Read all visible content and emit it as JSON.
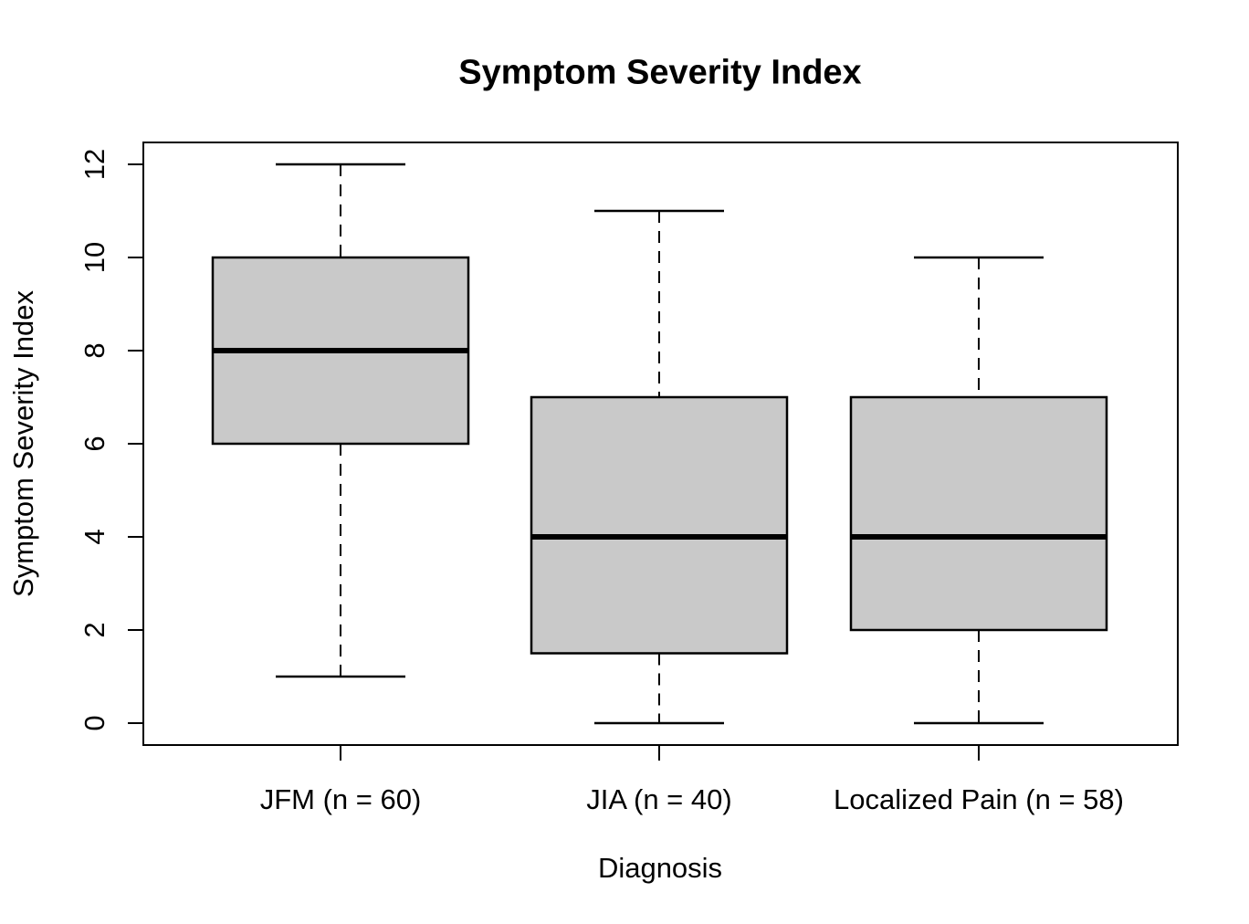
{
  "title": "Symptom Severity Index",
  "x_axis": {
    "label": "Diagnosis",
    "tick_labels": [
      "JFM (n = 60)",
      "JIA (n = 40)",
      "Localized Pain (n = 58)"
    ]
  },
  "y_axis": {
    "label": "Symptom Severity Index",
    "ticks": [
      0,
      2,
      4,
      6,
      8,
      10,
      12
    ]
  },
  "colors": {
    "box_fill": "#C9C9C9",
    "line": "#000000",
    "background": "#FFFFFF"
  },
  "chart_data": {
    "type": "boxplot",
    "title": "Symptom Severity Index",
    "xlabel": "Diagnosis",
    "ylabel": "Symptom Severity Index",
    "ylim": [
      0,
      12
    ],
    "yticks": [
      0,
      2,
      4,
      6,
      8,
      10,
      12
    ],
    "grid": false,
    "legend": null,
    "orientation": "vertical",
    "box_fill": "#C9C9C9",
    "categories": [
      "JFM (n = 60)",
      "JIA (n = 40)",
      "Localized Pain (n = 58)"
    ],
    "series": [
      {
        "name": "JFM (n = 60)",
        "n": 60,
        "whisker_low": 1,
        "q1": 6,
        "median": 8,
        "q3": 10,
        "whisker_high": 12
      },
      {
        "name": "JIA (n = 40)",
        "n": 40,
        "whisker_low": 0,
        "q1": 1.5,
        "median": 4,
        "q3": 7,
        "whisker_high": 11
      },
      {
        "name": "Localized Pain (n = 58)",
        "n": 58,
        "whisker_low": 0,
        "q1": 2,
        "median": 4,
        "q3": 7,
        "whisker_high": 10
      }
    ]
  }
}
